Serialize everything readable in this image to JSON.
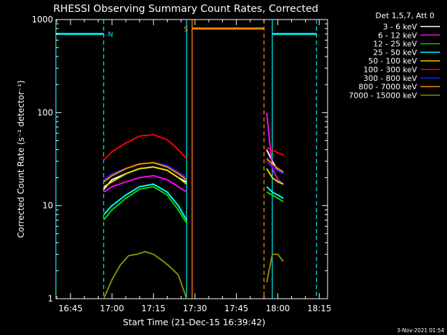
{
  "chart_data": {
    "type": "line",
    "title": "RHESSI Observing Summary Count Rates, Corrected",
    "xlabel": "Start Time (21-Dec-15 16:39:42)",
    "ylabel": "Corrected Count Rate (s⁻¹ detector⁻¹)",
    "yscale": "log",
    "ylim": [
      1,
      1000
    ],
    "xlim": [
      "16:39:42",
      "18:18:00"
    ],
    "grid": false,
    "legend_position": "top-right",
    "legend_title": "Det 1,5,7, Att 0",
    "x_ticks": [
      "16:45",
      "17:00",
      "17:15",
      "17:30",
      "17:45",
      "18:00",
      "18:15"
    ],
    "y_ticks": [
      "1",
      "10",
      "100",
      "1000"
    ],
    "footer": "3-Nov-2021 01:54",
    "series": [
      {
        "name": "3 - 6 keV",
        "color": "#ffffff",
        "segments": [
          {
            "x": [
              "16:57",
              "17:00",
              "17:05",
              "17:10",
              "17:15",
              "17:20",
              "17:24",
              "17:27"
            ],
            "y": [
              15,
              19,
              22,
              25,
              26,
              24,
              20,
              18
            ]
          },
          {
            "x": [
              "17:56",
              "17:58",
              "18:00",
              "18:02"
            ],
            "y": [
              40,
              30,
              24,
              22
            ]
          }
        ]
      },
      {
        "name": "6 - 12 keV",
        "color": "#ff00ff",
        "segments": [
          {
            "x": [
              "16:57",
              "17:00",
              "17:05",
              "17:10",
              "17:15",
              "17:20",
              "17:24",
              "17:27"
            ],
            "y": [
              14,
              16,
              18,
              20,
              21,
              19,
              16,
              14
            ]
          },
          {
            "x": [
              "17:56",
              "17:58",
              "18:00",
              "18:02"
            ],
            "y": [
              100,
              25,
              19,
              17
            ]
          }
        ]
      },
      {
        "name": "12 - 25 keV",
        "color": "#00dd00",
        "segments": [
          {
            "x": [
              "16:57",
              "17:00",
              "17:05",
              "17:10",
              "17:15",
              "17:20",
              "17:24",
              "17:27"
            ],
            "y": [
              7,
              9,
              12,
              15,
              16,
              13,
              9,
              6.5
            ]
          },
          {
            "x": [
              "17:56",
              "17:58",
              "18:00",
              "18:02"
            ],
            "y": [
              14,
              13,
              12,
              11
            ]
          }
        ]
      },
      {
        "name": "25 - 50 keV",
        "color": "#00ffff",
        "segments": [
          {
            "x": [
              "16:57",
              "17:00",
              "17:05",
              "17:10",
              "17:15",
              "17:20",
              "17:24",
              "17:27"
            ],
            "y": [
              8,
              10,
              13,
              16,
              17,
              14,
              10,
              7
            ]
          },
          {
            "x": [
              "17:56",
              "17:58",
              "18:00",
              "18:02"
            ],
            "y": [
              16,
              14,
              13,
              12
            ]
          }
        ]
      },
      {
        "name": "50 - 100 keV",
        "color": "#dddd00",
        "segments": [
          {
            "x": [
              "16:57",
              "17:00",
              "17:05",
              "17:10",
              "17:15",
              "17:20",
              "17:24",
              "17:27"
            ],
            "y": [
              16,
              18,
              22,
              25,
              26,
              24,
              20,
              17
            ]
          },
          {
            "x": [
              "17:56",
              "17:58",
              "18:00",
              "18:02"
            ],
            "y": [
              25,
              20,
              18,
              17
            ]
          }
        ]
      },
      {
        "name": "100 - 300 keV",
        "color": "#ff0000",
        "segments": [
          {
            "x": [
              "16:57",
              "17:00",
              "17:05",
              "17:10",
              "17:15",
              "17:20",
              "17:24",
              "17:27"
            ],
            "y": [
              31,
              38,
              47,
              56,
              58,
              51,
              40,
              32
            ]
          },
          {
            "x": [
              "17:56",
              "17:58",
              "18:00",
              "18:02"
            ],
            "y": [
              42,
              40,
              37,
              35
            ]
          }
        ]
      },
      {
        "name": "300 - 800 keV",
        "color": "#2222ff",
        "segments": [
          {
            "x": [
              "16:57",
              "17:00",
              "17:05",
              "17:10",
              "17:15",
              "17:20",
              "17:24",
              "17:27"
            ],
            "y": [
              19,
              22,
              25,
              28,
              29,
              27,
              23,
              20
            ]
          },
          {
            "x": [
              "17:56",
              "17:58",
              "18:00",
              "18:02"
            ],
            "y": [
              30,
              26,
              24,
              22
            ]
          }
        ]
      },
      {
        "name": "800 - 7000 keV",
        "color": "#ff8800",
        "segments": [
          {
            "x": [
              "16:57",
              "17:00",
              "17:05",
              "17:10",
              "17:15",
              "17:20",
              "17:24",
              "17:27"
            ],
            "y": [
              18,
              21,
              25,
              28,
              29,
              26,
              22,
              19
            ]
          },
          {
            "x": [
              "17:56",
              "17:58",
              "18:00",
              "18:02"
            ],
            "y": [
              32,
              28,
              25,
              23
            ]
          }
        ]
      },
      {
        "name": "7000 - 15000 keV",
        "color": "#8b8b00",
        "segments": [
          {
            "x": [
              "16:57",
              "17:00",
              "17:03",
              "17:06",
              "17:09",
              "17:12",
              "17:15",
              "17:18",
              "17:21",
              "17:24",
              "17:27"
            ],
            "y": [
              1,
              1.6,
              2.3,
              2.9,
              3,
              3.2,
              3,
              2.6,
              2.2,
              1.8,
              1
            ]
          },
          {
            "x": [
              "17:56",
              "17:58",
              "18:00",
              "18:02"
            ],
            "y": [
              1.5,
              3,
              3,
              2.5
            ]
          }
        ]
      }
    ],
    "annotations": {
      "night_label": "N",
      "saa_label": "S",
      "vertical_lines": [
        {
          "x": "16:39:42",
          "color": "#00e5e5",
          "style": "solid"
        },
        {
          "x": "16:57",
          "color": "#00e5e5",
          "style": "dashed"
        },
        {
          "x": "17:27",
          "color": "#00e5e5",
          "style": "solid"
        },
        {
          "x": "17:29",
          "color": "#ff8800",
          "style": "solid"
        },
        {
          "x": "17:55",
          "color": "#ff8800",
          "style": "dashed"
        },
        {
          "x": "17:58",
          "color": "#00e5e5",
          "style": "solid"
        },
        {
          "x": "18:14",
          "color": "#00e5e5",
          "style": "dashed"
        }
      ],
      "bars": [
        {
          "x_start": "16:39:42",
          "x_end": "16:57",
          "y": 700,
          "color": "#00e5e5"
        },
        {
          "x_start": "17:29",
          "x_end": "17:55",
          "y": 800,
          "color": "#ff8800"
        },
        {
          "x_start": "17:58",
          "x_end": "18:14",
          "y": 700,
          "color": "#00e5e5"
        }
      ]
    }
  }
}
